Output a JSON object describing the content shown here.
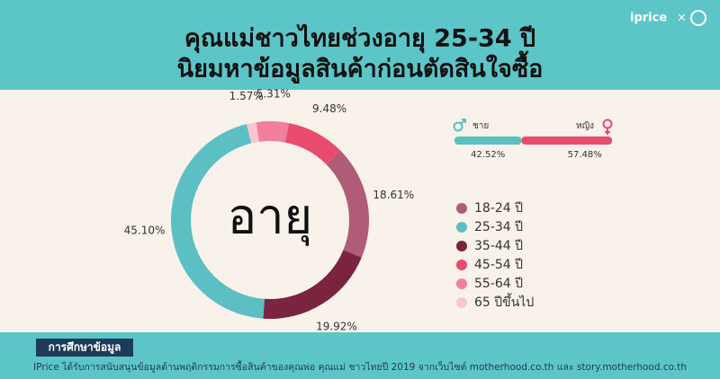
{
  "header": {
    "title_lines": [
      "คุณแม่ชาวไทยช่วงอายุ 25-34 ปี",
      "นิยมหาข้อมูลสินค้าก่อนตัดสินใจซื้อ"
    ],
    "brand": "iprice",
    "separator": "×"
  },
  "chart_data": [
    {
      "type": "donut",
      "center_label": "อายุ",
      "values": [
        5.31,
        9.48,
        18.61,
        19.92,
        45.1,
        1.57
      ],
      "value_labels": [
        "5.31%",
        "9.48%",
        "18.61%",
        "19.92%",
        "45.10%",
        "1.57%"
      ],
      "colors": [
        "#f27f9b",
        "#e94b6e",
        "#b05c78",
        "#7a2440",
        "#5bbfc4",
        "#f8c6d1"
      ],
      "legend": [
        {
          "name": "18-24 ปี",
          "color": "#b05c78"
        },
        {
          "name": "25-34 ปี",
          "color": "#5bbfc4"
        },
        {
          "name": "35-44 ปี",
          "color": "#7a2440"
        },
        {
          "name": "45-54 ปี",
          "color": "#e94b6e"
        },
        {
          "name": "55-64 ปี",
          "color": "#f27f9b"
        },
        {
          "name": "65 ปีขึ้นไป",
          "color": "#f8c6d1"
        }
      ]
    },
    {
      "type": "stacked-bar",
      "series": [
        {
          "name": "ชาย",
          "color": "#5bbfc4",
          "values": [
            42.52
          ],
          "value_labels": [
            "42.52%"
          ]
        },
        {
          "name": "หญิง",
          "color": "#e94b6e",
          "values": [
            57.48
          ],
          "value_labels": [
            "57.48%"
          ]
        }
      ]
    }
  ],
  "footer": {
    "heading": "การศึกษาข้อมูล",
    "text": "IPrice ได้รับการสนับสนุนข้อมูลด้านพฤติกรรมการซื้อสินค้าของคุณพ่อ คุณแม่ ชาวไทยปี 2019 จากเว็บไซต์ motherhood.co.th และ story.motherhood.co.th"
  }
}
